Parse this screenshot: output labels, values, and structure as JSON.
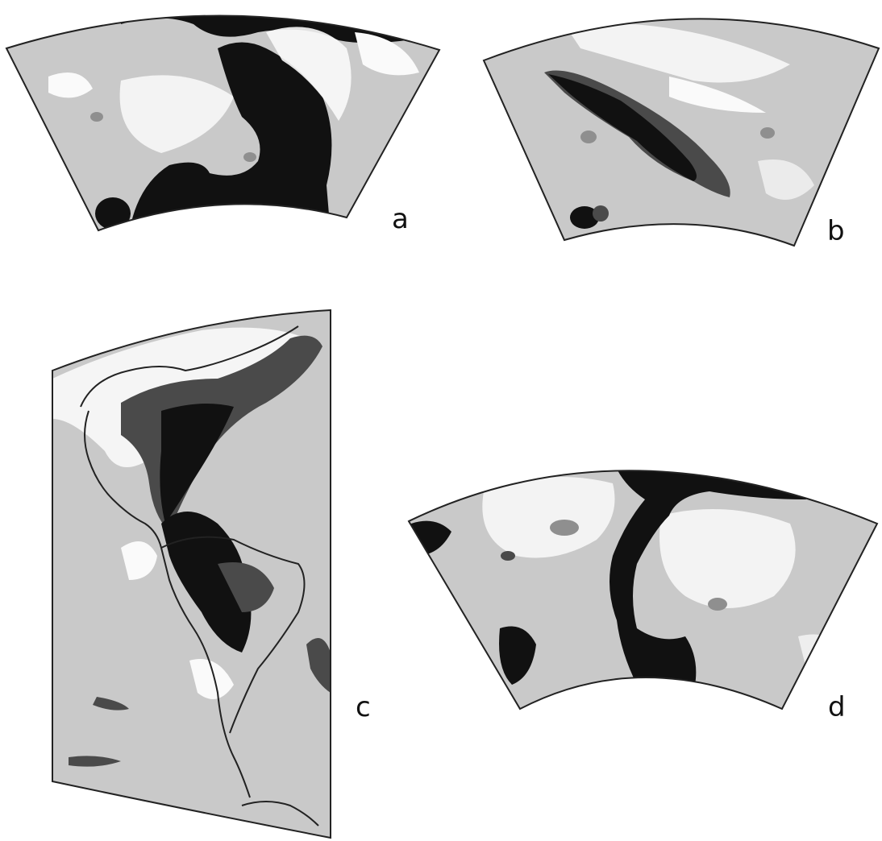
{
  "panels": {
    "a": {
      "label": "a"
    },
    "b": {
      "label": "b"
    },
    "c": {
      "label": "c"
    },
    "d": {
      "label": "d"
    }
  },
  "shades": {
    "black": "#111111",
    "dark": "#4a4a4a",
    "mid": "#8f8f8f",
    "light": "#c9c9c9",
    "white": "#fafafa",
    "outline": "#222222"
  }
}
